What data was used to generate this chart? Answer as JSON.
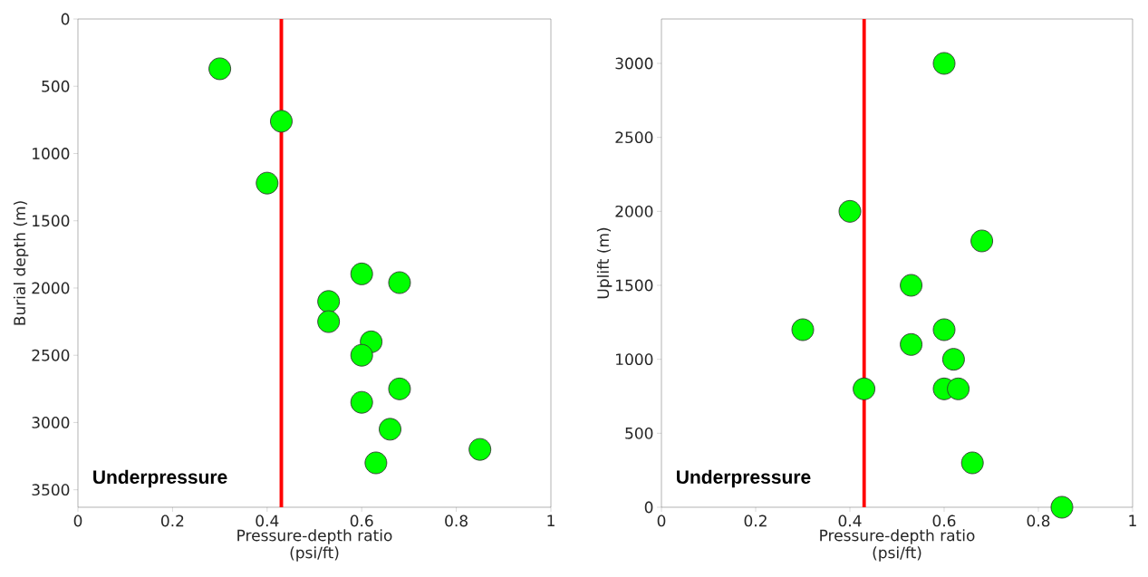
{
  "chart_data": [
    {
      "type": "scatter",
      "xlabel": "Pressure-depth ratio (psi/ft)",
      "ylabel": "Burial depth (m)",
      "x": [
        0.3,
        0.43,
        0.4,
        0.6,
        0.68,
        0.53,
        0.53,
        0.62,
        0.6,
        0.68,
        0.6,
        0.66,
        0.85,
        0.63
      ],
      "values": [
        370,
        760,
        1220,
        1895,
        1960,
        2100,
        2250,
        2400,
        2500,
        2750,
        2850,
        3050,
        3200,
        3300
      ],
      "color": "#00ff00",
      "marker": "circle",
      "xlim": [
        0,
        1
      ],
      "ylim": [
        3630,
        0
      ],
      "xticks": [
        0,
        0.2,
        0.4,
        0.6,
        0.8,
        1
      ],
      "yticks": [
        0,
        500,
        1000,
        1500,
        2000,
        2500,
        3000,
        3500
      ],
      "ref_lines": [
        {
          "axis": "x",
          "value": 0.43,
          "color": "#ff0000"
        }
      ],
      "annotations": [
        "Underpressure"
      ],
      "grid": false,
      "legend": false
    },
    {
      "type": "scatter",
      "xlabel": "Pressure-depth ratio (psi/ft)",
      "ylabel": "Uplift (m)",
      "x": [
        0.6,
        0.4,
        0.68,
        0.53,
        0.3,
        0.6,
        0.53,
        0.62,
        0.43,
        0.6,
        0.63,
        0.66,
        0.85
      ],
      "values": [
        3000,
        2000,
        1800,
        1500,
        1200,
        1200,
        1100,
        1000,
        800,
        800,
        800,
        300,
        0
      ],
      "color": "#00ff00",
      "marker": "circle",
      "xlim": [
        0,
        1
      ],
      "ylim": [
        0,
        3300
      ],
      "xticks": [
        0,
        0.2,
        0.4,
        0.6,
        0.8,
        1
      ],
      "yticks": [
        0,
        500,
        1000,
        1500,
        2000,
        2500,
        3000
      ],
      "ref_lines": [
        {
          "axis": "x",
          "value": 0.43,
          "color": "#ff0000"
        }
      ],
      "annotations": [
        "Underpressure"
      ],
      "grid": false,
      "legend": false
    }
  ]
}
